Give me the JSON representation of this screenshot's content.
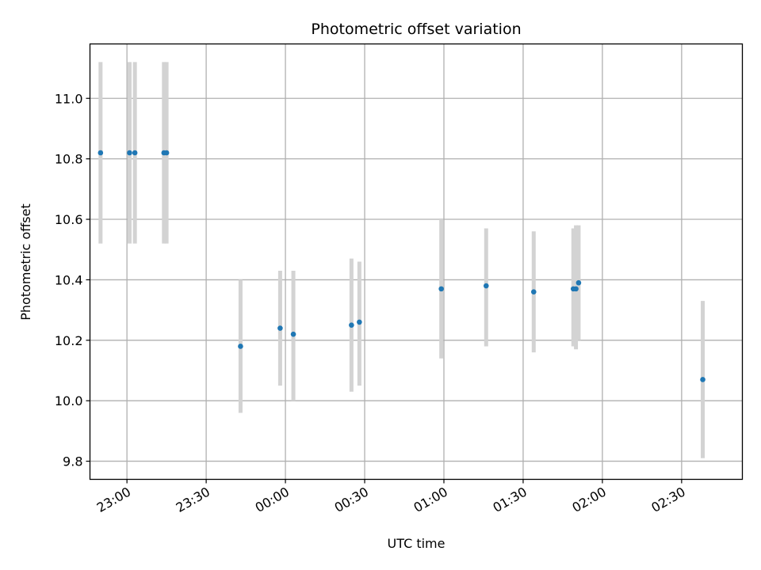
{
  "chart_data": {
    "type": "scatter",
    "title": "Photometric offset variation",
    "xlabel": "UTC time",
    "ylabel": "Photometric offset",
    "x_axis_type": "time",
    "xlim": [
      "22:46",
      "02:53"
    ],
    "ylim": [
      9.74,
      11.18
    ],
    "x_ticks": [
      "23:00",
      "23:30",
      "00:00",
      "00:30",
      "01:00",
      "01:30",
      "02:00",
      "02:30"
    ],
    "y_ticks": [
      9.8,
      10.0,
      10.2,
      10.4,
      10.6,
      10.8,
      11.0
    ],
    "y_tick_labels": [
      "9.8",
      "10.0",
      "10.2",
      "10.4",
      "10.6",
      "10.8",
      "11.0"
    ],
    "grid": true,
    "colors": {
      "points": "#1f77b4",
      "error_bars": "#d3d3d3",
      "grid": "#b0b0b0"
    },
    "points": [
      {
        "x": "22:50",
        "y": 10.82,
        "ylow": 10.52,
        "yhigh": 11.12
      },
      {
        "x": "23:01",
        "y": 10.82,
        "ylow": 10.52,
        "yhigh": 11.12
      },
      {
        "x": "23:03",
        "y": 10.82,
        "ylow": 10.52,
        "yhigh": 11.12
      },
      {
        "x": "23:14",
        "y": 10.82,
        "ylow": 10.52,
        "yhigh": 11.12
      },
      {
        "x": "23:15",
        "y": 10.82,
        "ylow": 10.52,
        "yhigh": 11.12
      },
      {
        "x": "23:43",
        "y": 10.18,
        "ylow": 9.96,
        "yhigh": 10.4
      },
      {
        "x": "23:58",
        "y": 10.24,
        "ylow": 10.05,
        "yhigh": 10.43
      },
      {
        "x": "00:03",
        "y": 10.22,
        "ylow": 10.0,
        "yhigh": 10.43
      },
      {
        "x": "00:25",
        "y": 10.25,
        "ylow": 10.03,
        "yhigh": 10.47
      },
      {
        "x": "00:28",
        "y": 10.26,
        "ylow": 10.05,
        "yhigh": 10.46
      },
      {
        "x": "00:59",
        "y": 10.37,
        "ylow": 10.14,
        "yhigh": 10.6
      },
      {
        "x": "01:16",
        "y": 10.38,
        "ylow": 10.18,
        "yhigh": 10.57
      },
      {
        "x": "01:34",
        "y": 10.36,
        "ylow": 10.16,
        "yhigh": 10.56
      },
      {
        "x": "01:49",
        "y": 10.37,
        "ylow": 10.18,
        "yhigh": 10.57
      },
      {
        "x": "01:50",
        "y": 10.37,
        "ylow": 10.17,
        "yhigh": 10.58
      },
      {
        "x": "01:51",
        "y": 10.39,
        "ylow": 10.2,
        "yhigh": 10.58
      },
      {
        "x": "02:38",
        "y": 10.07,
        "ylow": 9.81,
        "yhigh": 10.33
      }
    ]
  }
}
